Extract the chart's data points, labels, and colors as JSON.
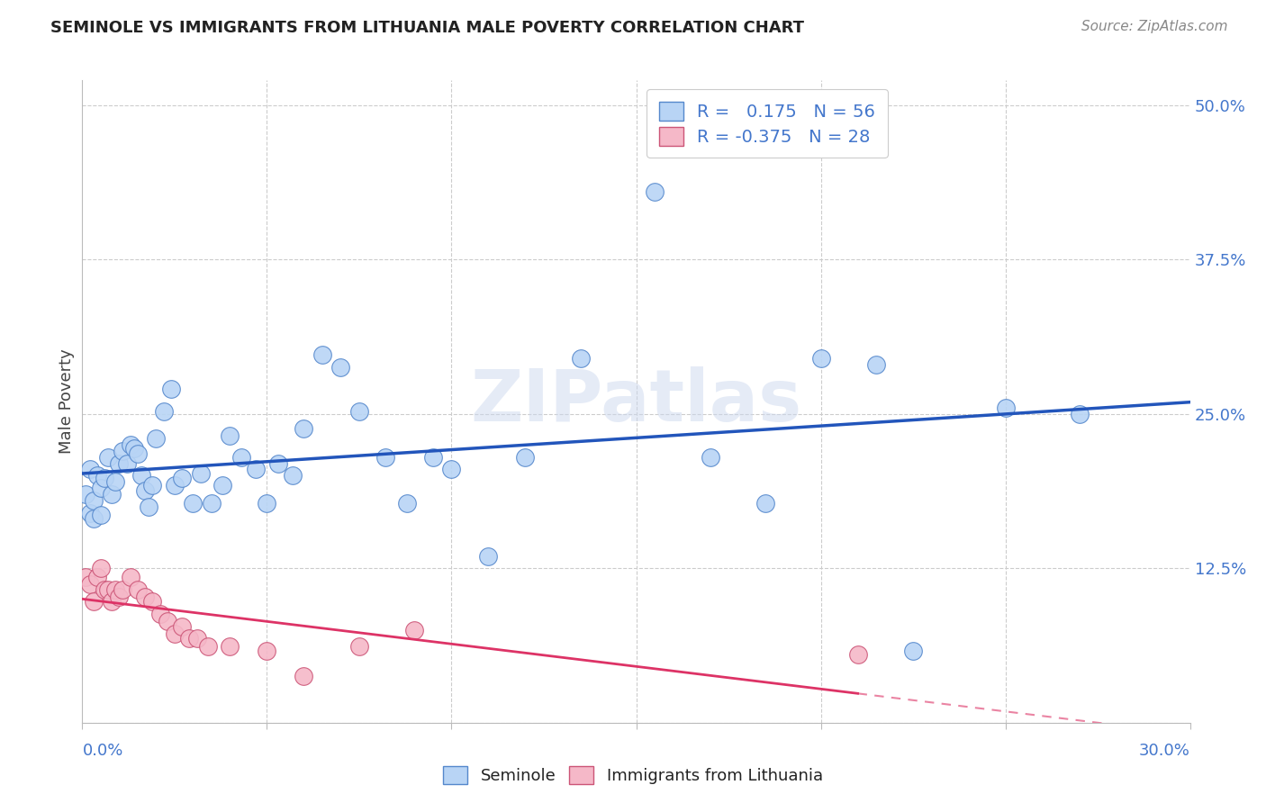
{
  "title": "SEMINOLE VS IMMIGRANTS FROM LITHUANIA MALE POVERTY CORRELATION CHART",
  "source": "Source: ZipAtlas.com",
  "ylabel": "Male Poverty",
  "xmin": 0.0,
  "xmax": 0.3,
  "ymin": 0.0,
  "ymax": 0.52,
  "seminole_color": "#b8d4f5",
  "seminole_edge_color": "#5588cc",
  "lithuania_color": "#f5b8c8",
  "lithuania_edge_color": "#cc5577",
  "seminole_line_color": "#2255bb",
  "lithuania_line_color": "#dd3366",
  "watermark": "ZIPatlas",
  "legend_r1_label": "R = ",
  "legend_r1_val": "0.175",
  "legend_r1_n": "N = 56",
  "legend_r2_label": "R = ",
  "legend_r2_val": "-0.375",
  "legend_r2_n": "N = 28",
  "seminole_x": [
    0.001,
    0.002,
    0.002,
    0.003,
    0.003,
    0.004,
    0.005,
    0.005,
    0.006,
    0.007,
    0.008,
    0.009,
    0.01,
    0.011,
    0.012,
    0.013,
    0.014,
    0.015,
    0.016,
    0.017,
    0.018,
    0.019,
    0.02,
    0.022,
    0.024,
    0.025,
    0.027,
    0.03,
    0.032,
    0.035,
    0.038,
    0.04,
    0.043,
    0.047,
    0.05,
    0.053,
    0.057,
    0.06,
    0.065,
    0.07,
    0.075,
    0.082,
    0.088,
    0.095,
    0.1,
    0.11,
    0.12,
    0.135,
    0.155,
    0.17,
    0.185,
    0.2,
    0.215,
    0.225,
    0.25,
    0.27
  ],
  "seminole_y": [
    0.185,
    0.17,
    0.205,
    0.18,
    0.165,
    0.2,
    0.19,
    0.168,
    0.198,
    0.215,
    0.185,
    0.195,
    0.21,
    0.22,
    0.21,
    0.225,
    0.222,
    0.218,
    0.2,
    0.188,
    0.175,
    0.192,
    0.23,
    0.252,
    0.27,
    0.192,
    0.198,
    0.178,
    0.202,
    0.178,
    0.192,
    0.232,
    0.215,
    0.205,
    0.178,
    0.21,
    0.2,
    0.238,
    0.298,
    0.288,
    0.252,
    0.215,
    0.178,
    0.215,
    0.205,
    0.135,
    0.215,
    0.295,
    0.43,
    0.215,
    0.178,
    0.295,
    0.29,
    0.058,
    0.255,
    0.25
  ],
  "lithuania_x": [
    0.001,
    0.002,
    0.003,
    0.004,
    0.005,
    0.006,
    0.007,
    0.008,
    0.009,
    0.01,
    0.011,
    0.013,
    0.015,
    0.017,
    0.019,
    0.021,
    0.023,
    0.025,
    0.027,
    0.029,
    0.031,
    0.034,
    0.04,
    0.05,
    0.06,
    0.075,
    0.09,
    0.21
  ],
  "lithuania_y": [
    0.118,
    0.112,
    0.098,
    0.118,
    0.125,
    0.108,
    0.108,
    0.098,
    0.108,
    0.102,
    0.108,
    0.118,
    0.108,
    0.102,
    0.098,
    0.088,
    0.082,
    0.072,
    0.078,
    0.068,
    0.068,
    0.062,
    0.062,
    0.058,
    0.038,
    0.062,
    0.075,
    0.055
  ]
}
